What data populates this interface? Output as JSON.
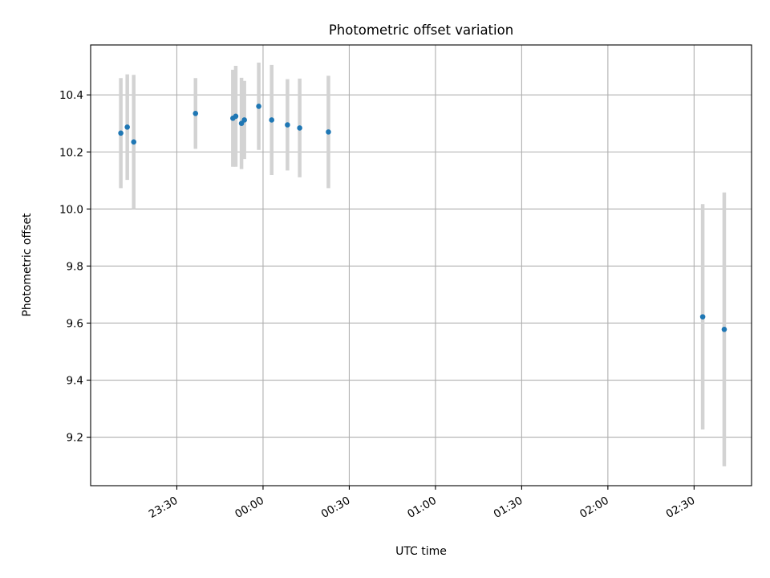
{
  "chart_data": {
    "type": "scatter",
    "title": "Photometric offset variation",
    "xlabel": "UTC time",
    "ylabel": "Photometric offset",
    "x_is_time": true,
    "x_reference_day": "2000-01-01",
    "xlim": [
      "23:00",
      "02:50"
    ],
    "ylim": [
      9.03,
      10.575
    ],
    "x_ticks": [
      "23:30",
      "00:00",
      "00:30",
      "01:00",
      "01:30",
      "02:00",
      "02:30"
    ],
    "y_ticks": [
      "9.2",
      "9.4",
      "9.6",
      "9.8",
      "10.0",
      "10.2",
      "10.4"
    ],
    "grid": true,
    "point_color": "#1f77b4",
    "errorbar_color": "#d3d3d3",
    "points": [
      {
        "time": "23:10:30",
        "y": 10.266,
        "err": 0.193
      },
      {
        "time": "23:12:45",
        "y": 10.287,
        "err": 0.185
      },
      {
        "time": "23:15:00",
        "y": 10.235,
        "err": 0.235
      },
      {
        "time": "23:36:30",
        "y": 10.335,
        "err": 0.124
      },
      {
        "time": "23:49:30",
        "y": 10.318,
        "err": 0.17
      },
      {
        "time": "23:50:30",
        "y": 10.325,
        "err": 0.177
      },
      {
        "time": "23:52:30",
        "y": 10.3,
        "err": 0.16
      },
      {
        "time": "23:53:30",
        "y": 10.312,
        "err": 0.137
      },
      {
        "time": "23:58:30",
        "y": 10.36,
        "err": 0.153
      },
      {
        "time": "00:03:00",
        "y": 10.312,
        "err": 0.193
      },
      {
        "time": "00:08:30",
        "y": 10.295,
        "err": 0.16
      },
      {
        "time": "00:12:45",
        "y": 10.284,
        "err": 0.173
      },
      {
        "time": "00:22:45",
        "y": 10.27,
        "err": 0.197
      },
      {
        "time": "02:33:00",
        "y": 9.622,
        "err": 0.395
      },
      {
        "time": "02:40:30",
        "y": 9.578,
        "err": 0.48
      }
    ]
  }
}
